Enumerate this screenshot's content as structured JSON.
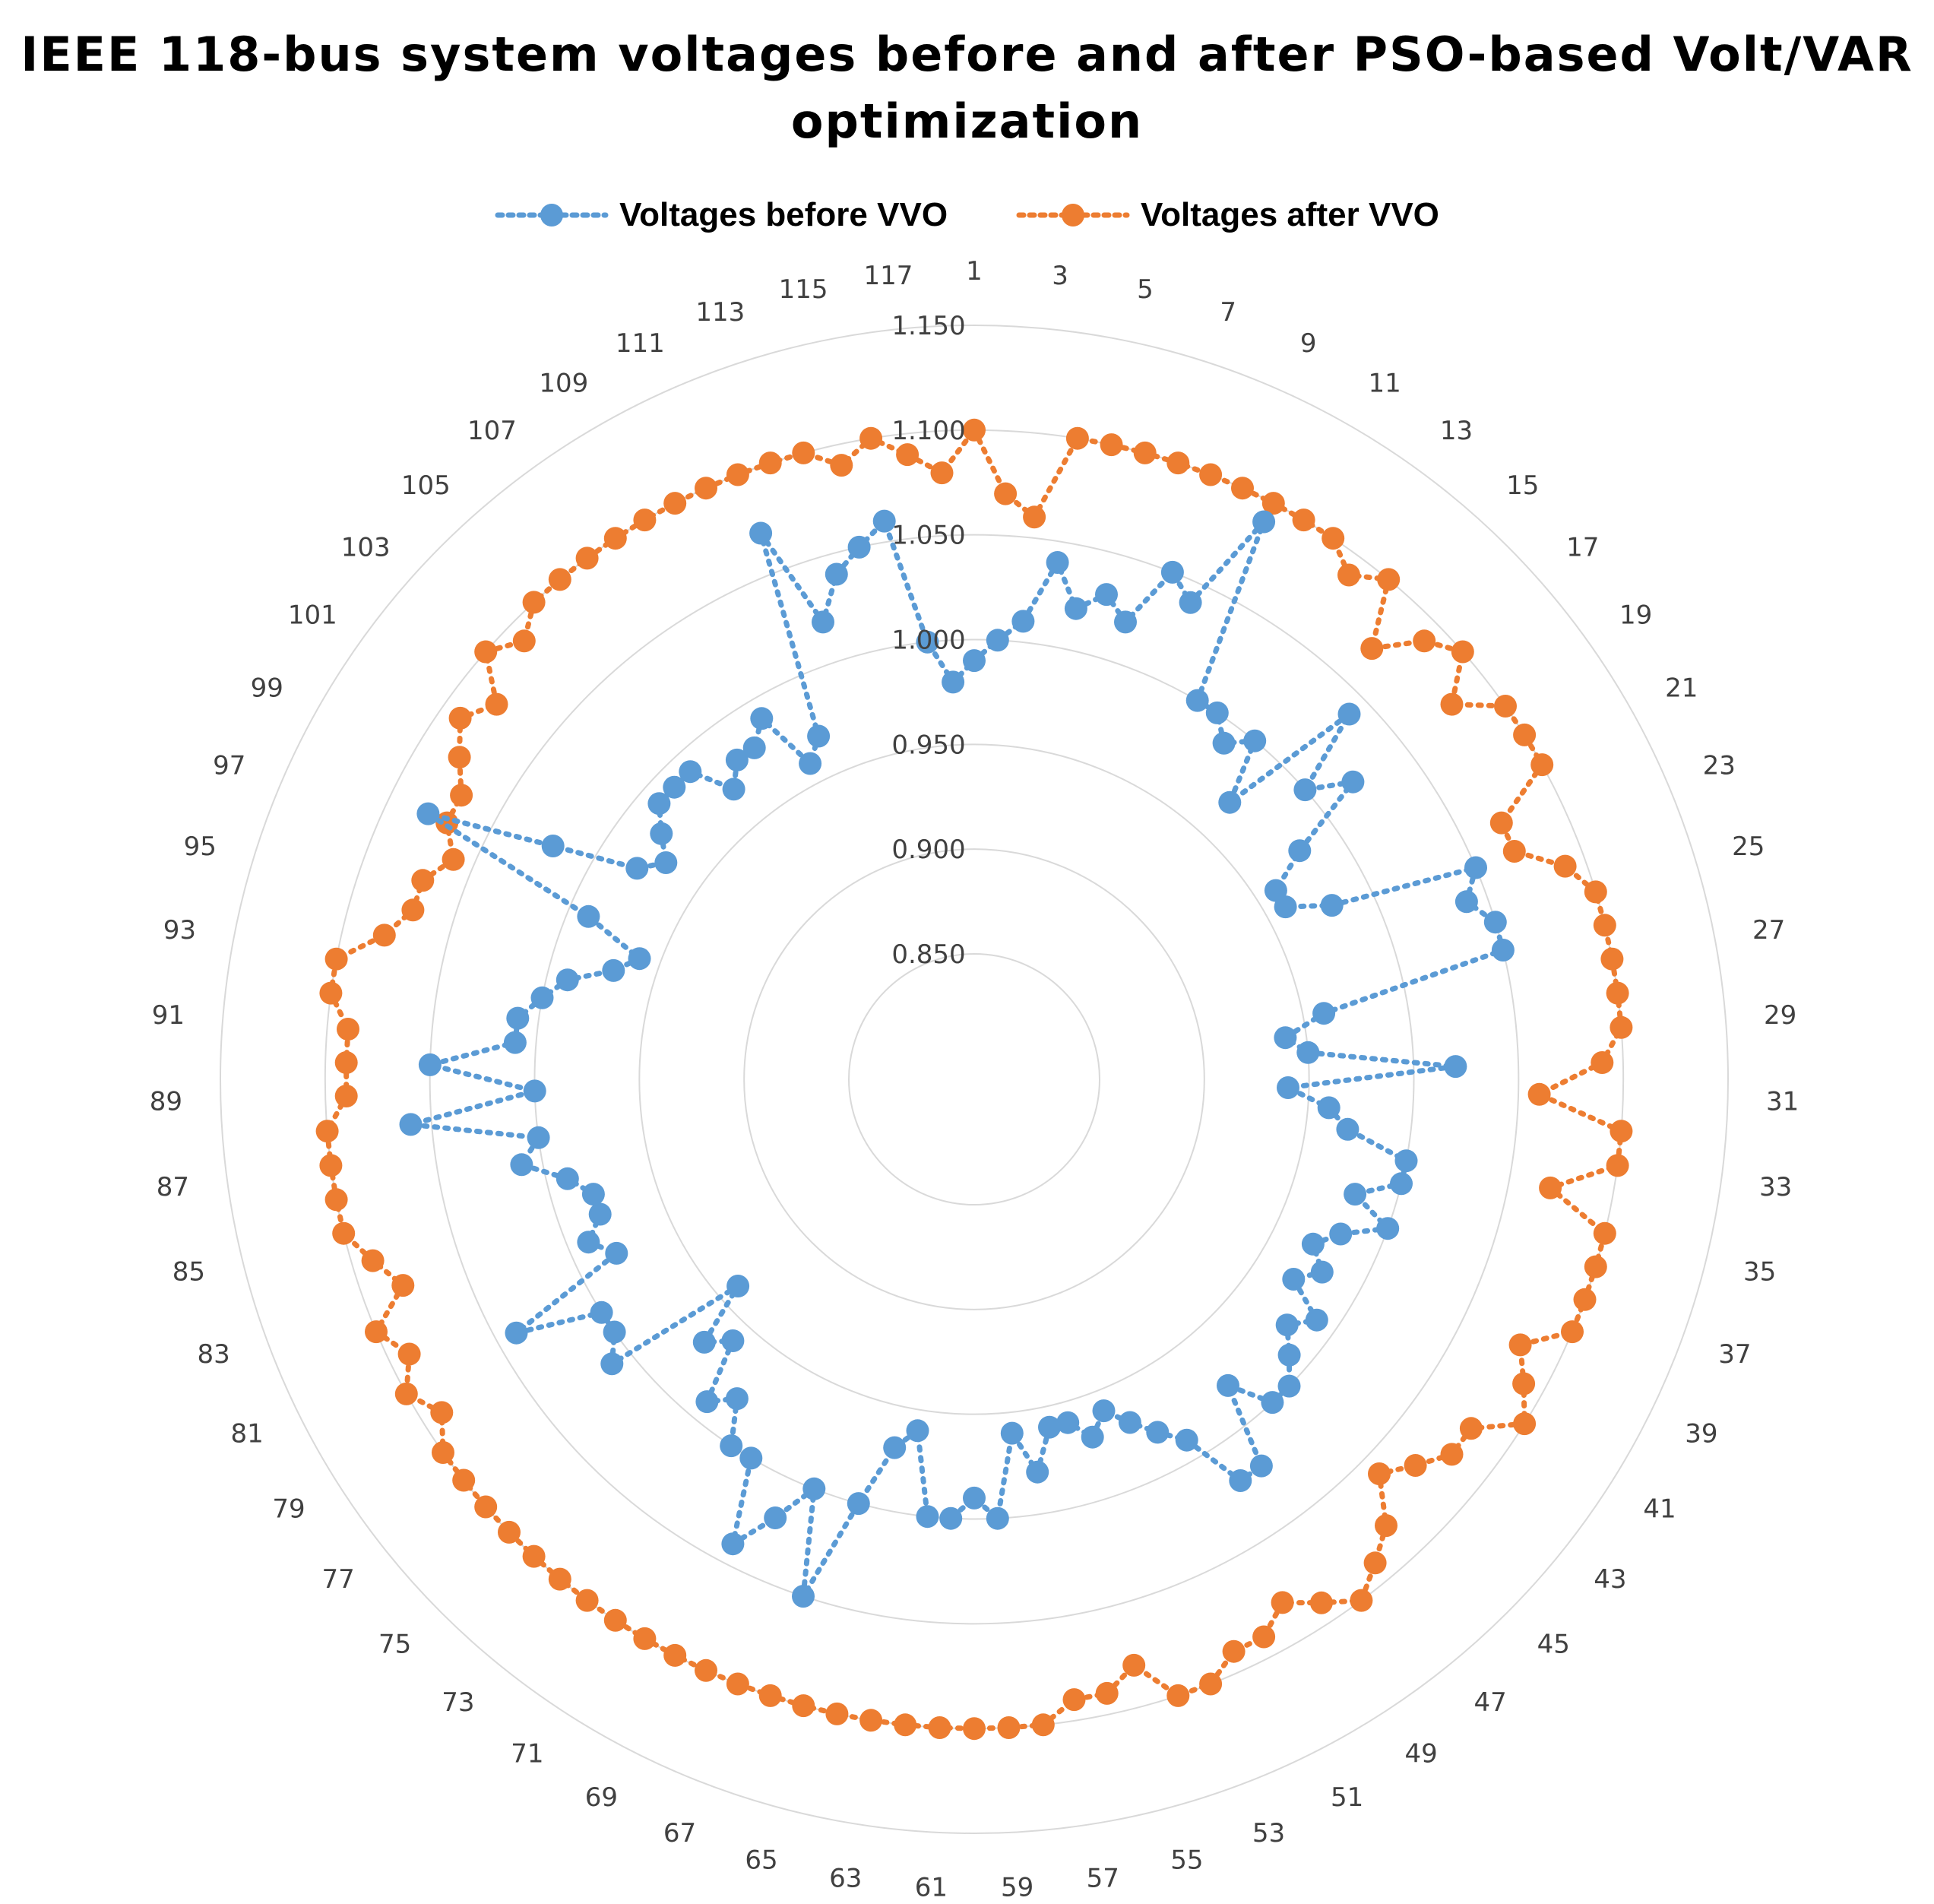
{
  "chart_data": {
    "type": "radar",
    "title": "IEEE 118-bus system voltages before and after PSO-based Volt/VAR optimization",
    "categories": [
      "1",
      "2",
      "3",
      "4",
      "5",
      "6",
      "7",
      "8",
      "9",
      "10",
      "11",
      "12",
      "13",
      "14",
      "15",
      "16",
      "17",
      "18",
      "19",
      "20",
      "21",
      "22",
      "23",
      "24",
      "25",
      "26",
      "27",
      "28",
      "29",
      "30",
      "31",
      "32",
      "33",
      "34",
      "35",
      "36",
      "37",
      "38",
      "39",
      "40",
      "41",
      "42",
      "43",
      "44",
      "45",
      "46",
      "47",
      "48",
      "49",
      "50",
      "51",
      "52",
      "53",
      "54",
      "55",
      "56",
      "57",
      "58",
      "59",
      "60",
      "61",
      "62",
      "63",
      "64",
      "65",
      "66",
      "67",
      "68",
      "69",
      "70",
      "71",
      "72",
      "73",
      "74",
      "75",
      "76",
      "77",
      "78",
      "79",
      "80",
      "81",
      "82",
      "83",
      "84",
      "85",
      "86",
      "87",
      "88",
      "89",
      "90",
      "91",
      "92",
      "93",
      "94",
      "95",
      "96",
      "97",
      "98",
      "99",
      "100",
      "101",
      "102",
      "103",
      "104",
      "105",
      "106",
      "107",
      "108",
      "109",
      "110",
      "111",
      "112",
      "113",
      "114",
      "115",
      "116",
      "117",
      "118"
    ],
    "axis_label_every": 2,
    "ticks": [
      "0.850",
      "0.900",
      "0.950",
      "1.000",
      "1.050",
      "1.100",
      "1.150"
    ],
    "rmin": 0.85,
    "rmax": 1.15,
    "legend_position": "top",
    "series": [
      {
        "name": "Voltages before VVO",
        "color": "#5B9BD5",
        "values": [
          0.99,
          1.0,
          1.01,
          1.04,
          1.02,
          1.03,
          1.02,
          1.05,
          1.04,
          1.09,
          1.0,
          1.0,
          0.99,
          1.0,
          0.97,
          1.04,
          1.0,
          1.02,
          0.98,
          0.96,
          0.96,
          0.98,
          1.05,
          1.04,
          1.05,
          1.05,
          0.96,
          0.94,
          0.95,
          1.02,
          0.94,
          0.96,
          0.97,
          1.0,
          1.0,
          0.98,
          1.0,
          0.98,
          0.97,
          0.98,
          0.97,
          0.99,
          0.98,
          0.99,
          1.0,
          1.0,
          0.98,
          1.02,
          1.02,
          0.99,
          0.98,
          0.97,
          0.96,
          0.97,
          0.96,
          0.96,
          0.98,
          0.96,
          1.0,
          0.99,
          1.0,
          1.0,
          0.96,
          0.97,
          1.0,
          1.05,
          1.0,
          1.02,
          1.04,
          1.0,
          1.0,
          0.98,
          0.99,
          0.96,
          0.97,
          0.94,
          1.01,
          1.0,
          1.0,
          1.04,
          0.98,
          0.99,
          0.98,
          0.98,
          0.99,
          1.01,
          1.0,
          1.06,
          1.0,
          1.05,
          1.01,
          1.01,
          1.0,
          0.99,
          0.97,
          0.96,
          0.99,
          1.08,
          1.02,
          0.98,
          0.97,
          0.98,
          0.99,
          0.99,
          0.99,
          0.97,
          0.98,
          0.98,
          0.99,
          0.96,
          0.97,
          1.07,
          1.02,
          1.04,
          1.05,
          1.06,
          1.0,
          0.98
        ]
      },
      {
        "name": "Voltages after VVO",
        "color": "#ED7D31",
        "values": [
          1.1,
          1.07,
          1.06,
          1.1,
          1.1,
          1.1,
          1.1,
          1.1,
          1.1,
          1.1,
          1.1,
          1.1,
          1.09,
          1.1,
          1.07,
          1.09,
          1.1,
          1.08,
          1.1,
          1.1,
          1.1,
          1.07,
          1.07,
          1.09,
          1.1,
          1.1,
          1.1,
          1.1,
          1.1,
          1.09,
          1.06,
          1.1,
          1.1,
          1.07,
          1.1,
          1.1,
          1.1,
          1.1,
          1.08,
          1.09,
          1.1,
          1.08,
          1.08,
          1.07,
          1.06,
          1.08,
          1.09,
          1.1,
          1.09,
          1.08,
          1.09,
          1.09,
          1.1,
          1.1,
          1.08,
          1.09,
          1.09,
          1.1,
          1.1,
          1.1,
          1.1,
          1.1,
          1.1,
          1.1,
          1.1,
          1.1,
          1.1,
          1.1,
          1.1,
          1.1,
          1.1,
          1.1,
          1.1,
          1.1,
          1.1,
          1.1,
          1.1,
          1.1,
          1.09,
          1.1,
          1.09,
          1.1,
          1.08,
          1.09,
          1.1,
          1.1,
          1.1,
          1.1,
          1.09,
          1.09,
          1.09,
          1.1,
          1.1,
          1.08,
          1.07,
          1.07,
          1.06,
          1.07,
          1.07,
          1.08,
          1.09,
          1.08,
          1.1,
          1.09,
          1.1,
          1.1,
          1.1,
          1.1,
          1.1,
          1.1,
          1.1,
          1.1,
          1.1,
          1.1,
          1.09,
          1.1,
          1.09,
          1.08
        ]
      }
    ]
  }
}
